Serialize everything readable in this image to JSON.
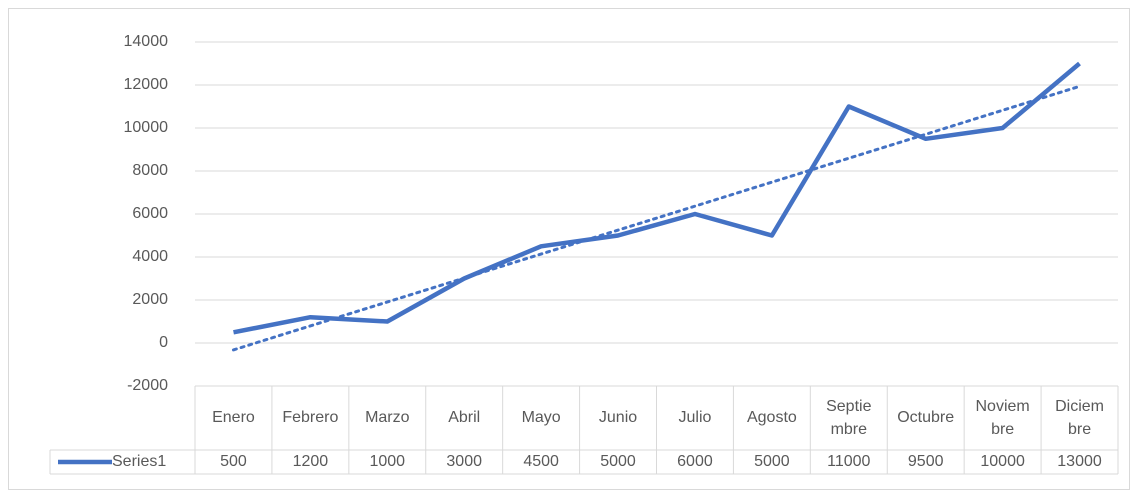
{
  "chart_data": {
    "type": "line",
    "categories": [
      "Enero",
      "Febrero",
      "Marzo",
      "Abril",
      "Mayo",
      "Junio",
      "Julio",
      "Agosto",
      "Septiembre",
      "Octubre",
      "Noviembre",
      "Diciembre"
    ],
    "series": [
      {
        "name": "Series1",
        "color": "#4472c4",
        "values": [
          500,
          1200,
          1000,
          3000,
          4500,
          5000,
          6000,
          5000,
          11000,
          9500,
          10000,
          13000
        ]
      }
    ],
    "trendline": "linear",
    "data_table": true,
    "ylim": [
      -2000,
      14000
    ],
    "yticks": [
      -2000,
      0,
      2000,
      4000,
      6000,
      8000,
      10000,
      12000,
      14000
    ],
    "grid": true
  }
}
